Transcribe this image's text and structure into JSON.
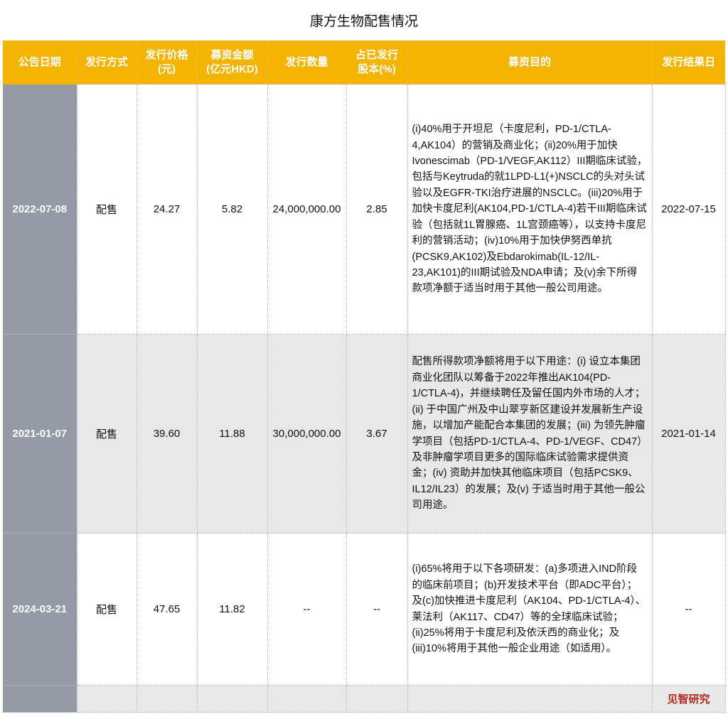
{
  "title": "康方生物配售情况",
  "headers": [
    "公告日期",
    "发行方式",
    "发行价格\n(元)",
    "募资金额\n(亿元HKD)",
    "发行数量",
    "占已发行\n股本(%)",
    "募资目的",
    "发行结果日"
  ],
  "rows": [
    {
      "date": "2022-07-08",
      "method": "配售",
      "price": "24.27",
      "amount": "5.82",
      "quantity": "24,000,000.00",
      "share_pct": "2.85",
      "purpose": "(i)40%用于开坦尼（卡度尼利，PD-1/CTLA-4,AK104）的营销及商业化；(ii)20%用于加快Ivonescimab（PD-1/VEGF,AK112）III期临床试验，包括与Keytruda的就1LPD-L1(+)NSCLC的头对头试验以及EGFR-TKI治疗进展的NSCLC。(iii)20%用于加快卡度尼利(AK104,PD-1/CTLA-4)若干III期临床试验（包括就1L胃腺癌、1L宫颈癌等），以支持卡度尼利的营销活动；(iv)10%用于加快伊努西单抗(PCSK9,AK102)及Ebdarokimab(IL-12/IL-23,AK101)的III期试验及NDA申请；及(v)余下所得款项净额于适当时用于其他一般公司用途。",
      "result_date": "2022-07-15"
    },
    {
      "date": "2021-01-07",
      "method": "配售",
      "price": "39.60",
      "amount": "11.88",
      "quantity": "30,000,000.00",
      "share_pct": "3.67",
      "purpose": "配售所得款项净额将用于以下用途：(i) 设立本集团商业化团队以筹备于2022年推出AK104(PD-1/CTLA-4)，并继续聘任及留任国内外市场的人才；(ii) 于中国广州及中山翠亨新区建设并发展新生产设施，以增加产能配合本集团的发展；(iii) 为领先肿瘤学项目（包括PD-1/CTLA-4、PD-1/VEGF、CD47）及非肿瘤学项目更多的国际临床试验需求提供资金；(iv) 资助并加快其他临床项目（包括PCSK9、IL12/IL23）的发展；及(v) 于适当时用于其他一般公司用途。",
      "result_date": "2021-01-14"
    },
    {
      "date": "2024-03-21",
      "method": "配售",
      "price": "47.65",
      "amount": "11.82",
      "quantity": "--",
      "share_pct": "--",
      "purpose": "(i)65%将用于以下各项研发：(a)多项进入IND阶段的临床前项目；(b)开发技术平台（即ADC平台）；及(c)加快推进卡度尼利（AK104、PD-1/CTLA-4）、莱法利（AK117、CD47）等的全球临床试验；(ii)25%将用于卡度尼利及依沃西的商业化；及(iii)10%将用于其他一般企业用途（如适用）。",
      "result_date": "--"
    }
  ],
  "footer_brand": "见智研究",
  "colors": {
    "header": "#f5b400",
    "date_column": "#949ba6",
    "alt_row": "#e8e8e8",
    "brand": "#b5261e"
  }
}
